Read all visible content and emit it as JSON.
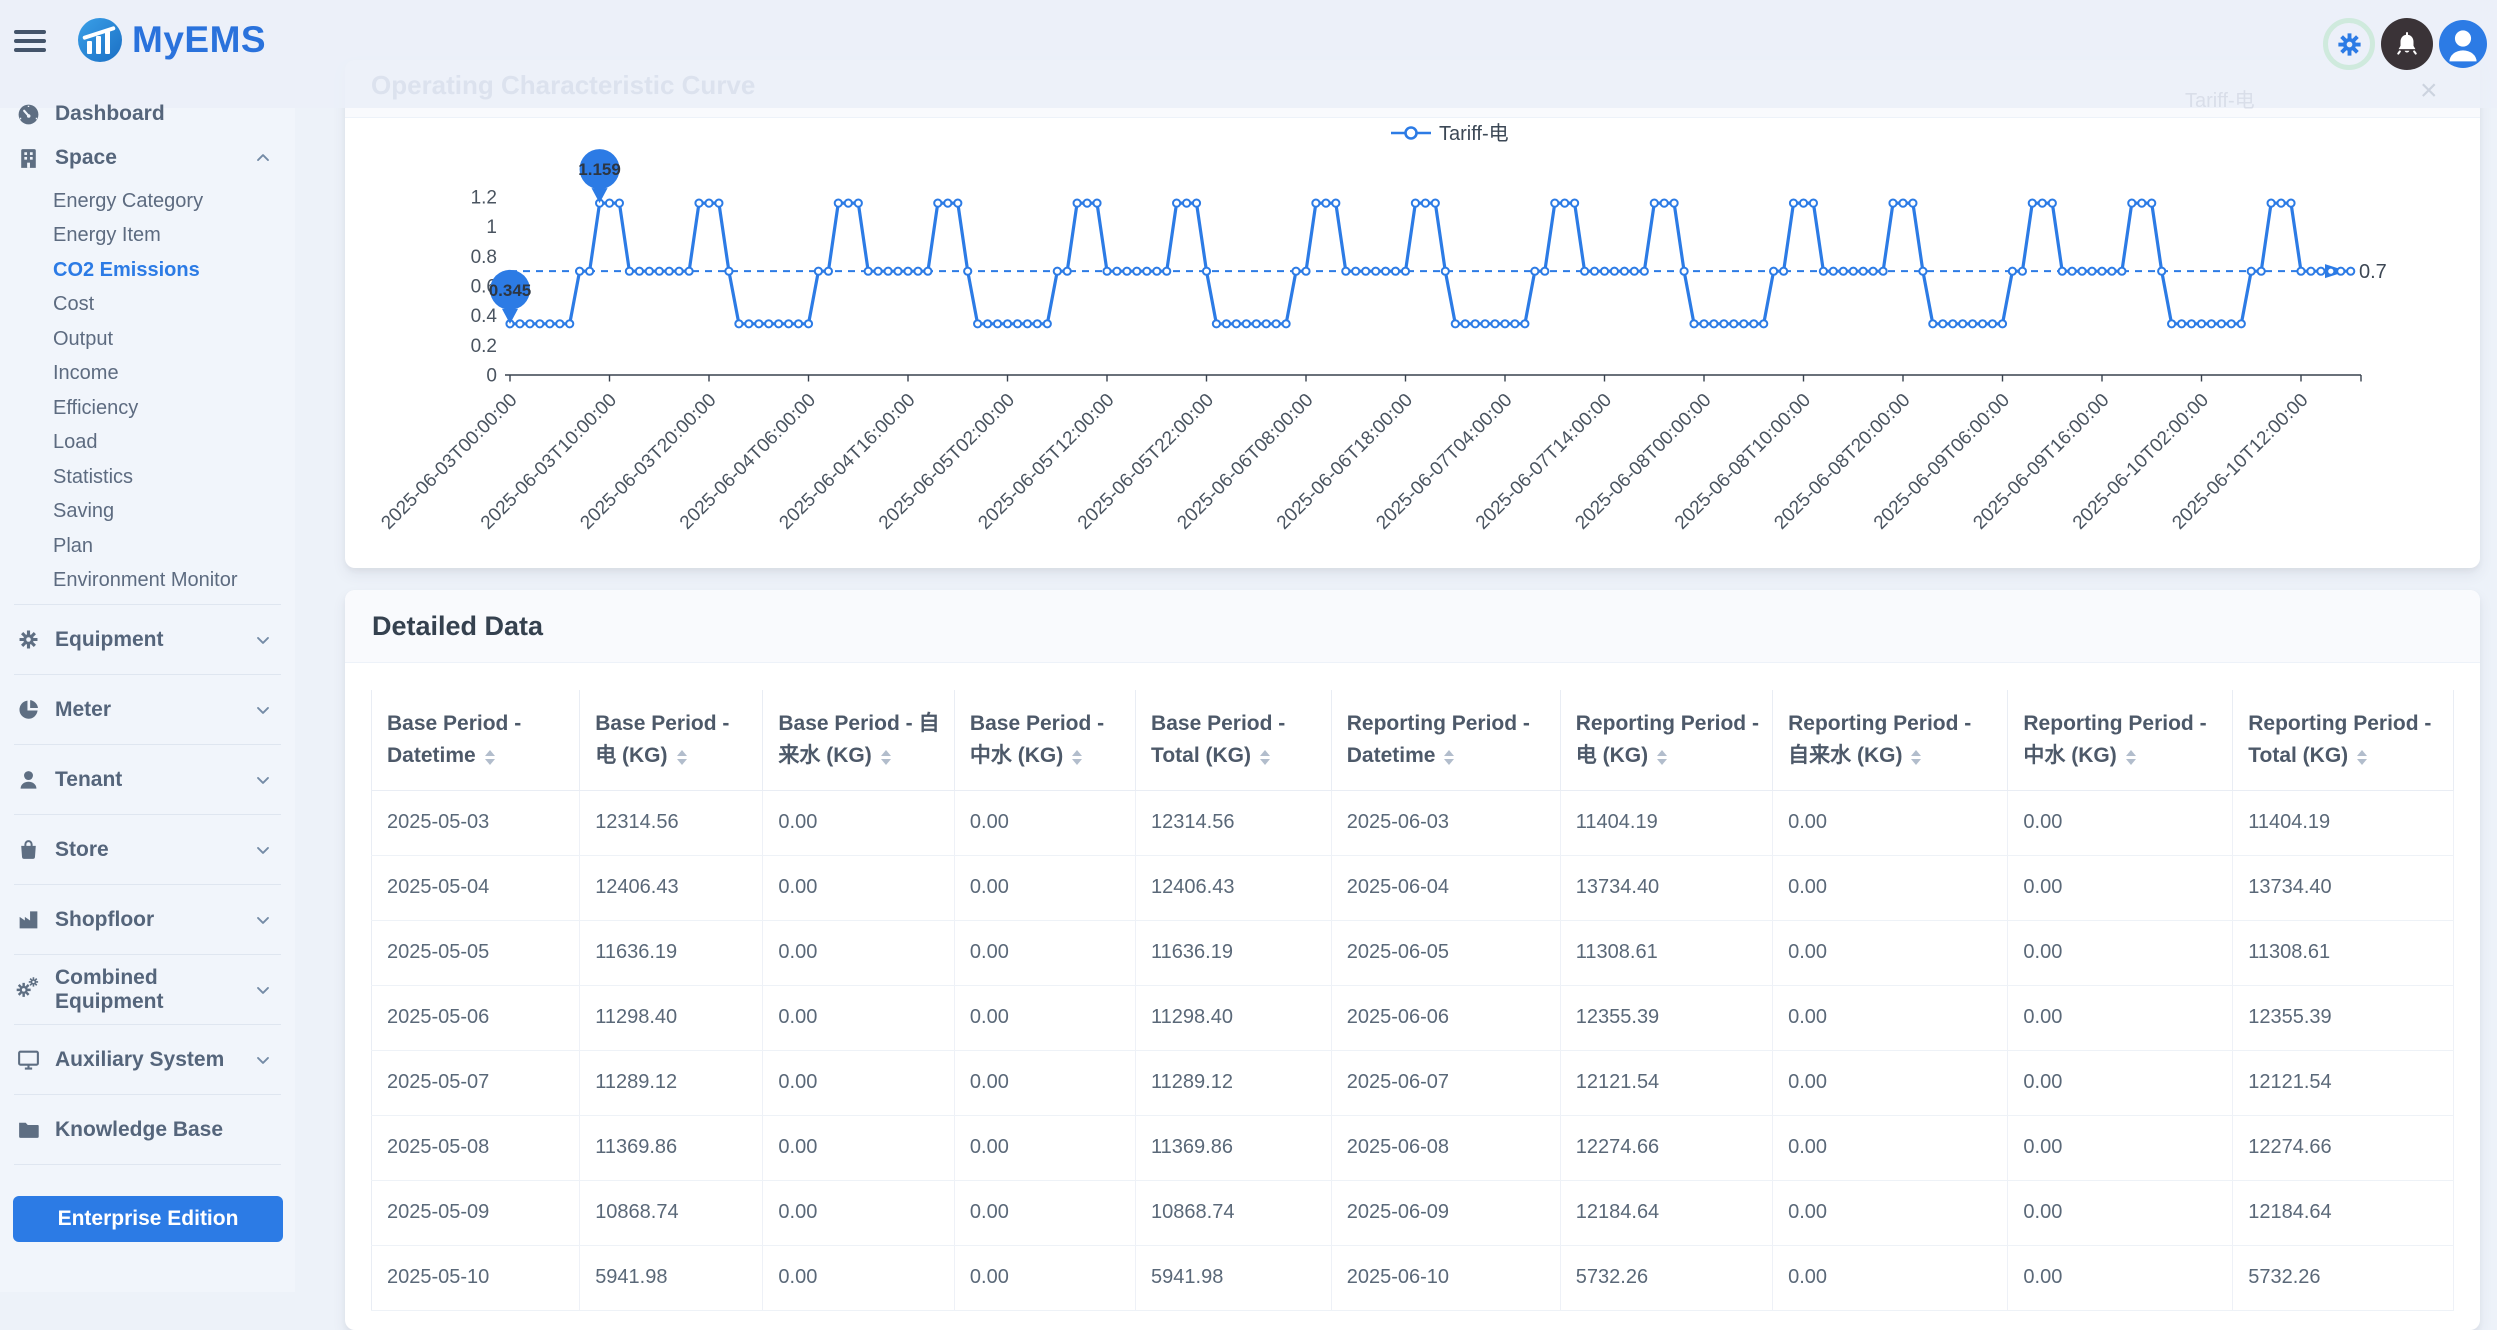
{
  "brand": {
    "name": "MyEMS"
  },
  "topbar": {
    "icons": [
      {
        "name": "settings-gear-icon"
      },
      {
        "name": "notification-bell-icon"
      },
      {
        "name": "user-avatar-icon"
      }
    ]
  },
  "sidebar": {
    "active_item": "CO2 Emissions",
    "cta_label": "Enterprise Edition",
    "items": [
      {
        "label": "Dashboard",
        "icon": "dashboard-icon",
        "chevron": null
      },
      {
        "label": "Space",
        "icon": "building-icon",
        "chevron": "up",
        "children": [
          "Energy Category",
          "Energy Item",
          "CO2 Emissions",
          "Cost",
          "Output",
          "Income",
          "Efficiency",
          "Load",
          "Statistics",
          "Saving",
          "Plan",
          "Environment Monitor"
        ]
      },
      {
        "label": "Equipment",
        "icon": "gear-icon",
        "chevron": "down"
      },
      {
        "label": "Meter",
        "icon": "pie-icon",
        "chevron": "down"
      },
      {
        "label": "Tenant",
        "icon": "user-icon",
        "chevron": "down"
      },
      {
        "label": "Store",
        "icon": "bag-icon",
        "chevron": "down"
      },
      {
        "label": "Shopfloor",
        "icon": "factory-icon",
        "chevron": "down"
      },
      {
        "label": "Combined Equipment",
        "icon": "gears-icon",
        "chevron": "down"
      },
      {
        "label": "Auxiliary System",
        "icon": "monitor-icon",
        "chevron": "down"
      },
      {
        "label": "Knowledge Base",
        "icon": "folder-icon",
        "chevron": null
      }
    ]
  },
  "chart_card": {
    "title": "Operating Characteristic Curve"
  },
  "ghosts": {
    "legend_label": "Tariff-电",
    "close_glyph": "×"
  },
  "chart_data": {
    "type": "line",
    "title": "Operating Characteristic Curve",
    "legend": [
      "Tariff-电"
    ],
    "legend_position": "top-center",
    "color": "#2c7be5",
    "grid": false,
    "ylim": [
      0,
      1.2
    ],
    "y_ticks": [
      0,
      0.2,
      0.4,
      0.6,
      0.8,
      1,
      1.2
    ],
    "x_start": "2025-06-03T00:00:00",
    "interval_hours": 1,
    "hours_shown": 186,
    "daily_pattern_24h": [
      0.345,
      0.345,
      0.345,
      0.345,
      0.345,
      0.345,
      0.345,
      0.7,
      0.7,
      1.159,
      1.159,
      1.159,
      0.7,
      0.7,
      0.7,
      0.7,
      0.7,
      0.7,
      0.7,
      1.159,
      1.159,
      1.159,
      0.7,
      0.345
    ],
    "x_tick_labels": [
      "2025-06-03T00:00:00",
      "2025-06-03T10:00:00",
      "2025-06-03T20:00:00",
      "2025-06-04T06:00:00",
      "2025-06-04T16:00:00",
      "2025-06-05T02:00:00",
      "2025-06-05T12:00:00",
      "2025-06-05T22:00:00",
      "2025-06-06T08:00:00",
      "2025-06-06T18:00:00",
      "2025-06-07T04:00:00",
      "2025-06-07T14:00:00",
      "2025-06-08T00:00:00",
      "2025-06-08T10:00:00",
      "2025-06-08T20:00:00",
      "2025-06-09T06:00:00",
      "2025-06-09T16:00:00",
      "2025-06-10T02:00:00",
      "2025-06-10T12:00:00"
    ],
    "markers": {
      "max": {
        "value": 1.159,
        "label": "1.159"
      },
      "min": {
        "value": 0.345,
        "label": "0.345"
      }
    },
    "avg_line": {
      "value": 0.7,
      "label": "0.7"
    }
  },
  "table_card": {
    "title": "Detailed Data",
    "columns": [
      "Base Period - Datetime",
      "Base Period - 电 (KG)",
      "Base Period - 自来水 (KG)",
      "Base Period - 中水 (KG)",
      "Base Period - Total (KG)",
      "Reporting Period - Datetime",
      "Reporting Period - 电 (KG)",
      "Reporting Period - 自来水 (KG)",
      "Reporting Period - 中水 (KG)",
      "Reporting Period - Total (KG)"
    ],
    "rows": [
      [
        "2025-05-03",
        "12314.56",
        "0.00",
        "0.00",
        "12314.56",
        "2025-06-03",
        "11404.19",
        "0.00",
        "0.00",
        "11404.19"
      ],
      [
        "2025-05-04",
        "12406.43",
        "0.00",
        "0.00",
        "12406.43",
        "2025-06-04",
        "13734.40",
        "0.00",
        "0.00",
        "13734.40"
      ],
      [
        "2025-05-05",
        "11636.19",
        "0.00",
        "0.00",
        "11636.19",
        "2025-06-05",
        "11308.61",
        "0.00",
        "0.00",
        "11308.61"
      ],
      [
        "2025-05-06",
        "11298.40",
        "0.00",
        "0.00",
        "11298.40",
        "2025-06-06",
        "12355.39",
        "0.00",
        "0.00",
        "12355.39"
      ],
      [
        "2025-05-07",
        "11289.12",
        "0.00",
        "0.00",
        "11289.12",
        "2025-06-07",
        "12121.54",
        "0.00",
        "0.00",
        "12121.54"
      ],
      [
        "2025-05-08",
        "11369.86",
        "0.00",
        "0.00",
        "11369.86",
        "2025-06-08",
        "12274.66",
        "0.00",
        "0.00",
        "12274.66"
      ],
      [
        "2025-05-09",
        "10868.74",
        "0.00",
        "0.00",
        "10868.74",
        "2025-06-09",
        "12184.64",
        "0.00",
        "0.00",
        "12184.64"
      ],
      [
        "2025-05-10",
        "5941.98",
        "0.00",
        "0.00",
        "5941.98",
        "2025-06-10",
        "5732.26",
        "0.00",
        "0.00",
        "5732.26"
      ]
    ]
  }
}
